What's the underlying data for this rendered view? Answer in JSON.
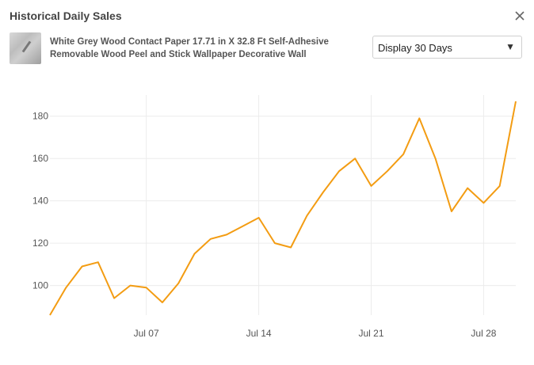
{
  "header": {
    "title": "Historical Daily Sales"
  },
  "product": {
    "name": "White Grey Wood Contact Paper 17.71 in X 32.8 Ft Self-Adhesive Removable Wood Peel and Stick Wallpaper Decorative Wall"
  },
  "range_select": {
    "selected": "Display 30 Days"
  },
  "colors": {
    "line": "#f39c12",
    "grid": "#ececec"
  },
  "chart_data": {
    "type": "line",
    "title": "",
    "xlabel": "",
    "ylabel": "",
    "x": [
      "2024-07-01",
      "2024-07-02",
      "2024-07-03",
      "2024-07-04",
      "2024-07-05",
      "2024-07-06",
      "2024-07-07",
      "2024-07-08",
      "2024-07-09",
      "2024-07-10",
      "2024-07-11",
      "2024-07-12",
      "2024-07-13",
      "2024-07-14",
      "2024-07-15",
      "2024-07-16",
      "2024-07-17",
      "2024-07-18",
      "2024-07-19",
      "2024-07-20",
      "2024-07-21",
      "2024-07-22",
      "2024-07-23",
      "2024-07-24",
      "2024-07-25",
      "2024-07-26",
      "2024-07-27",
      "2024-07-28",
      "2024-07-29",
      "2024-07-30"
    ],
    "series": [
      {
        "values": [
          86,
          99,
          109,
          111,
          94,
          100,
          99,
          92,
          101,
          115,
          122,
          124,
          128,
          132,
          120,
          118,
          133,
          144,
          154,
          160,
          147,
          154,
          162,
          179,
          160,
          135,
          146,
          139,
          147,
          187
        ]
      }
    ],
    "x_tick_labels": [
      "Jul 07",
      "Jul 14",
      "Jul 21",
      "Jul 28"
    ],
    "y_ticks": [
      100,
      120,
      140,
      160,
      180
    ],
    "ylim": [
      86,
      190
    ],
    "grid": true,
    "legend": "none"
  }
}
